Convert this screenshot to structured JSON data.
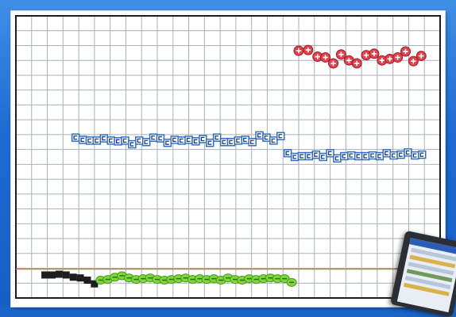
{
  "chart_data": {
    "type": "scatter",
    "title": "",
    "xlabel": "",
    "ylabel": "",
    "grid": true,
    "grid_divisions": {
      "x": 27,
      "y": 19
    },
    "xlim": [
      0,
      27
    ],
    "ylim": [
      0,
      19
    ],
    "reference_line": {
      "y": 1.95,
      "color": "#e07050"
    },
    "series": [
      {
        "marker": "circle-plus",
        "color": "#e0424e",
        "x": [
          18.0,
          18.6,
          19.2,
          19.7,
          20.2,
          20.7,
          21.2,
          21.7,
          22.3,
          22.8,
          23.3,
          23.8,
          24.3,
          24.8,
          25.3,
          25.8
        ],
        "y": [
          16.65,
          16.7,
          16.25,
          16.2,
          15.8,
          16.4,
          16.0,
          15.8,
          16.35,
          16.45,
          16.0,
          16.1,
          16.2,
          16.6,
          15.95,
          16.3
        ]
      },
      {
        "marker": "square-c",
        "color": "#2f6fc8",
        "x": [
          3.8,
          4.25,
          4.7,
          5.15,
          5.6,
          6.05,
          6.5,
          6.95,
          7.4,
          7.85,
          8.3,
          8.75,
          9.2,
          9.65,
          10.1,
          10.55,
          11.0,
          11.45,
          11.9,
          12.35,
          12.8,
          13.25,
          13.7,
          14.15,
          14.6,
          15.05,
          15.5,
          15.95,
          16.4,
          16.85,
          17.3,
          17.75,
          18.2,
          18.65,
          19.1,
          19.55,
          20.0,
          20.45,
          20.9,
          21.35,
          21.8,
          22.25,
          22.7,
          23.15,
          23.6,
          24.05,
          24.5,
          24.95,
          25.4,
          25.85
        ],
        "y": [
          10.8,
          10.65,
          10.6,
          10.6,
          10.75,
          10.6,
          10.55,
          10.6,
          10.35,
          10.6,
          10.5,
          10.8,
          10.75,
          10.45,
          10.65,
          10.6,
          10.65,
          10.55,
          10.7,
          10.45,
          10.8,
          10.5,
          10.5,
          10.6,
          10.65,
          10.5,
          10.95,
          10.8,
          10.6,
          10.9,
          9.75,
          9.5,
          9.55,
          9.55,
          9.65,
          9.5,
          9.75,
          9.4,
          9.55,
          9.6,
          9.55,
          9.55,
          9.6,
          9.55,
          9.75,
          9.6,
          9.65,
          9.8,
          9.6,
          9.65
        ]
      },
      {
        "marker": "square-filled",
        "color": "#1e1e1e",
        "x": [
          1.85,
          2.3,
          2.75,
          3.2,
          3.65,
          4.1,
          4.55,
          5.0
        ],
        "y": [
          1.55,
          1.55,
          1.6,
          1.55,
          1.4,
          1.35,
          1.2,
          0.95
        ]
      },
      {
        "marker": "circle-minus",
        "color": "#7ed83a",
        "x": [
          5.4,
          5.85,
          6.3,
          6.75,
          7.2,
          7.65,
          8.1,
          8.55,
          9.0,
          9.45,
          9.9,
          10.35,
          10.8,
          11.25,
          11.7,
          12.15,
          12.6,
          13.05,
          13.5,
          13.95,
          14.4,
          14.85,
          15.3,
          15.75,
          16.2,
          16.65,
          17.1,
          17.55
        ],
        "y": [
          1.2,
          1.25,
          1.4,
          1.5,
          1.35,
          1.25,
          1.3,
          1.35,
          1.25,
          1.2,
          1.25,
          1.3,
          1.35,
          1.25,
          1.3,
          1.25,
          1.3,
          1.2,
          1.35,
          1.25,
          1.2,
          1.3,
          1.25,
          1.3,
          1.35,
          1.3,
          1.3,
          1.05
        ]
      }
    ]
  },
  "style": {
    "grid_color": "#a9b0ba",
    "border_color": "#1c1c1c",
    "background": "#ffffff"
  }
}
